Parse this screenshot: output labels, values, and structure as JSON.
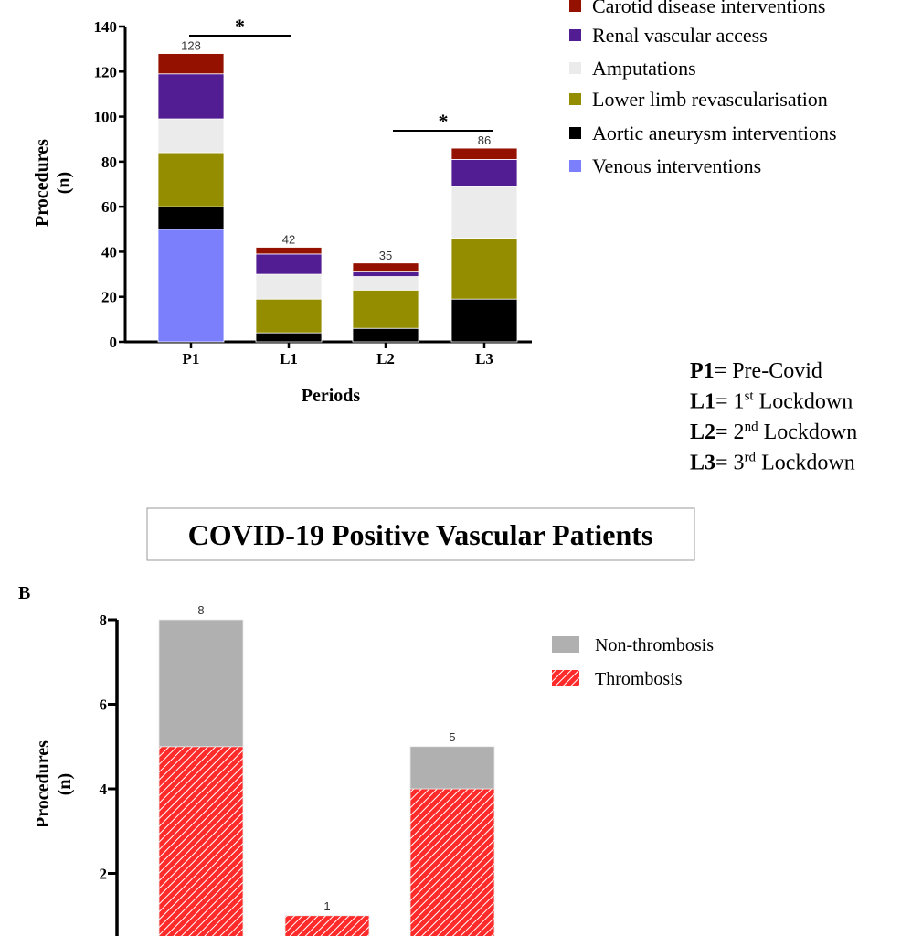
{
  "chart_data": [
    {
      "type": "bar",
      "stacked": true,
      "xlabel": "Periods",
      "ylabel": "Procedures\n(n)",
      "ylabel_lines": [
        "Procedures",
        "(n)"
      ],
      "ylim": [
        0,
        140
      ],
      "yticks": [
        0,
        20,
        40,
        60,
        80,
        100,
        120,
        140
      ],
      "categories": [
        "P1",
        "L1",
        "L2",
        "L3"
      ],
      "totals_labels": [
        "128",
        "42",
        "35",
        "86"
      ],
      "legend_position": "top-right",
      "series": [
        {
          "name": "Venous interventions",
          "color": "#7b7ffc",
          "values": [
            50,
            0,
            0,
            0
          ]
        },
        {
          "name": "Aortic aneurysm interventions",
          "color": "#000000",
          "values": [
            10,
            4,
            6,
            19
          ]
        },
        {
          "name": "Lower limb revascularisation",
          "color": "#948d00",
          "values": [
            24,
            15,
            17,
            27
          ]
        },
        {
          "name": "Amputations",
          "color": "#ebebeb",
          "values": [
            15,
            11,
            6,
            23
          ]
        },
        {
          "name": "Renal vascular access",
          "color": "#521c93",
          "values": [
            20,
            9,
            2,
            12
          ]
        },
        {
          "name": "Carotid disease interventions",
          "color": "#941100",
          "values": [
            9,
            3,
            4,
            5
          ]
        }
      ],
      "legend_order": [
        "Carotid disease interventions",
        "Renal vascular access",
        "Amputations",
        "Lower limb revascularisation",
        "Aortic aneurysm interventions",
        "Venous interventions"
      ],
      "significance": [
        {
          "from": "P1",
          "to": "L1",
          "label": "*"
        },
        {
          "from": "L2",
          "to": "L3",
          "label": "*"
        }
      ],
      "period_key": [
        {
          "code": "P1",
          "pre": "= Pre-Covid",
          "sup": "",
          "post": ""
        },
        {
          "code": "L1",
          "pre": "= 1",
          "sup": "st",
          "post": " Lockdown"
        },
        {
          "code": "L2",
          "pre": "= 2",
          "sup": "nd",
          "post": " Lockdown"
        },
        {
          "code": "L3",
          "pre": "= 3",
          "sup": "rd",
          "post": " Lockdown"
        }
      ]
    },
    {
      "type": "bar",
      "stacked": true,
      "title": "COVID-19 Positive Vascular Patients",
      "panel_label": "B",
      "ylabel_lines": [
        "Procedures",
        "(n)"
      ],
      "yticks": [
        2,
        4,
        6,
        8
      ],
      "ylim": [
        0,
        8
      ],
      "categories": [
        "",
        "",
        ""
      ],
      "totals_labels": [
        "8",
        "1",
        "5"
      ],
      "legend_position": "top-right",
      "series": [
        {
          "name": "Thrombosis",
          "color": "#ff2a2a",
          "pattern": "hatched",
          "values": [
            5,
            1,
            4
          ]
        },
        {
          "name": "Non-thrombosis",
          "color": "#b0b0b0",
          "values": [
            3,
            0,
            1
          ]
        }
      ],
      "legend_order": [
        "Non-thrombosis",
        "Thrombosis"
      ]
    }
  ]
}
